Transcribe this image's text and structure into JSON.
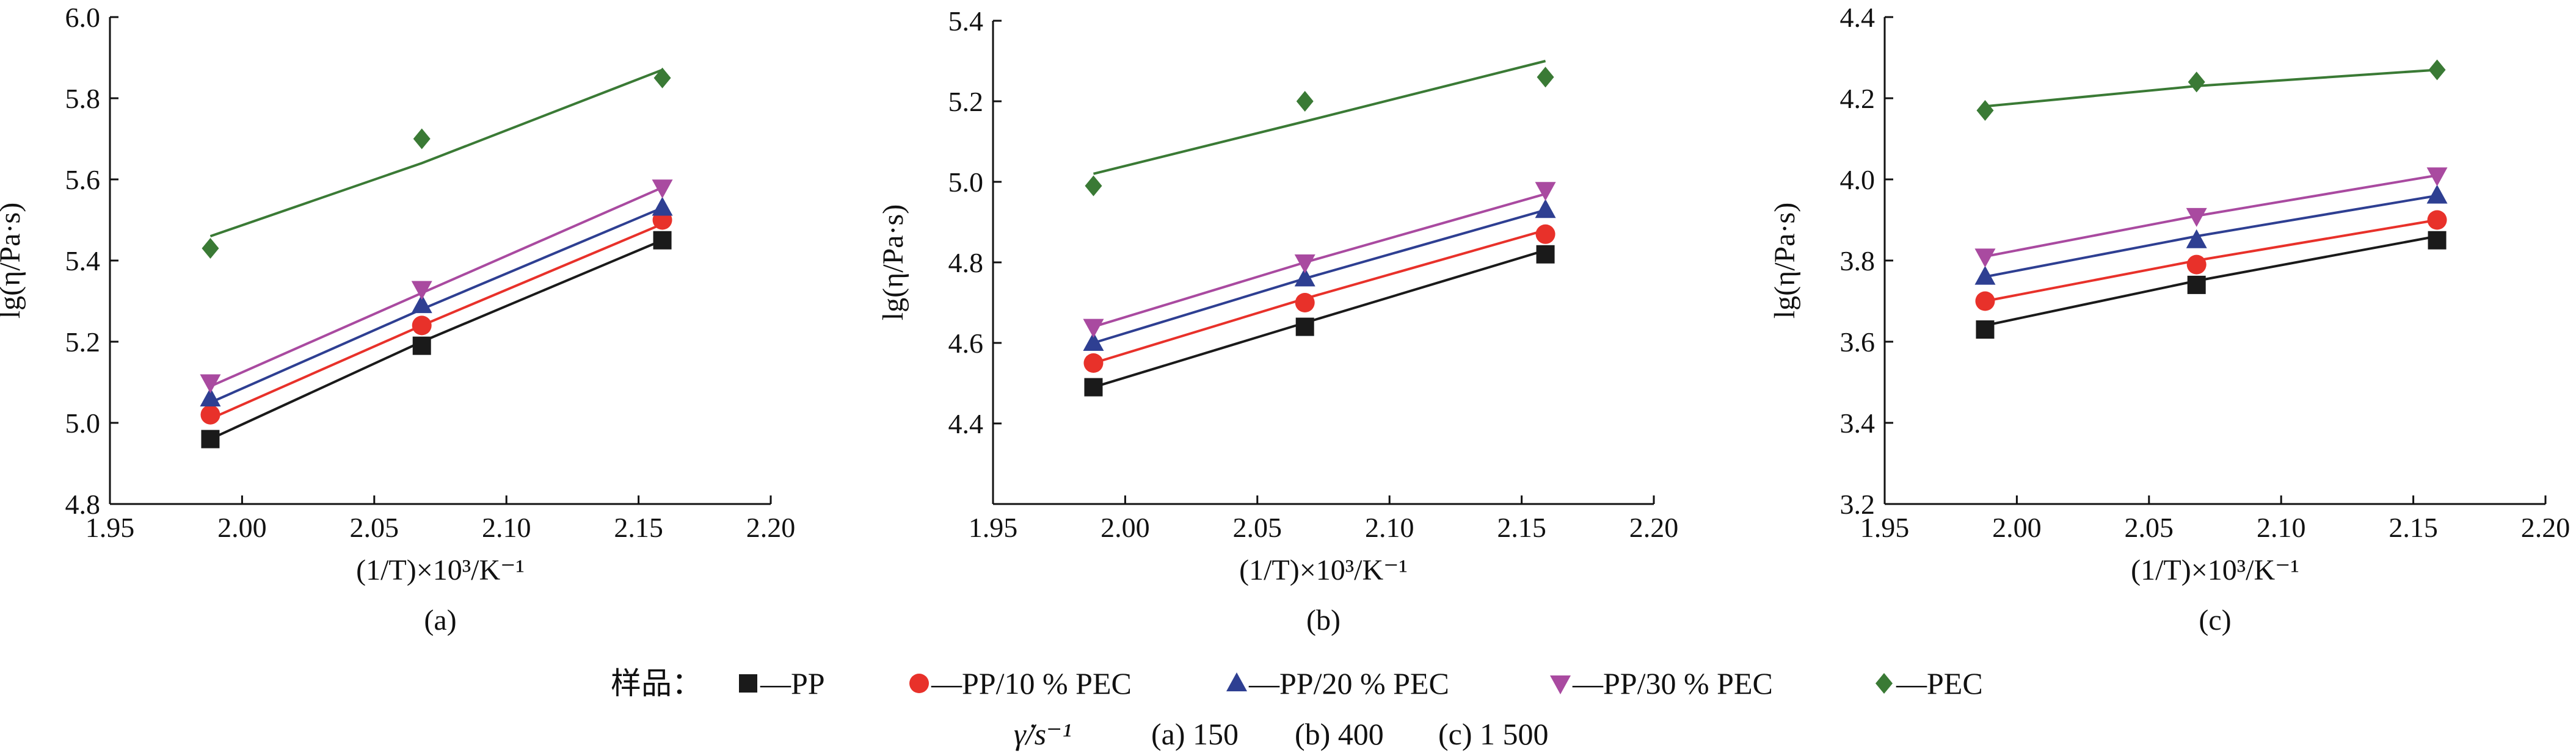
{
  "chart_data": [
    {
      "type": "scatter",
      "panel_label": "(a)",
      "xlabel": "(1/T)×10³/K⁻¹",
      "ylabel": "lg(η/Pa·s)",
      "xlim": [
        1.95,
        2.2
      ],
      "ylim": [
        4.8,
        6.0
      ],
      "xticks": [
        "1.95",
        "2.00",
        "2.05",
        "2.10",
        "2.15",
        "2.20"
      ],
      "yticks": [
        "4.8",
        "5.0",
        "5.2",
        "5.4",
        "5.6",
        "5.8",
        "6.0"
      ],
      "x": [
        1.988,
        2.068,
        2.159
      ],
      "series": [
        {
          "name": "PP",
          "values": [
            4.96,
            5.19,
            5.45
          ],
          "fit": [
            4.96,
            5.2,
            5.45
          ]
        },
        {
          "name": "PP/10 % PEC",
          "values": [
            5.02,
            5.24,
            5.5
          ],
          "fit": [
            5.01,
            5.24,
            5.49
          ]
        },
        {
          "name": "PP/20 % PEC",
          "values": [
            5.06,
            5.29,
            5.53
          ],
          "fit": [
            5.05,
            5.28,
            5.53
          ]
        },
        {
          "name": "PP/30 % PEC",
          "values": [
            5.1,
            5.33,
            5.58
          ],
          "fit": [
            5.09,
            5.32,
            5.58
          ]
        },
        {
          "name": "PEC",
          "values": [
            5.43,
            5.7,
            5.85
          ],
          "fit": [
            5.46,
            5.64,
            5.87
          ]
        }
      ]
    },
    {
      "type": "scatter",
      "panel_label": "(b)",
      "xlabel": "(1/T)×10³/K⁻¹",
      "ylabel": "lg(η/Pa·s)",
      "xlim": [
        1.95,
        2.2
      ],
      "ylim": [
        4.2,
        5.4
      ],
      "xticks": [
        "1.95",
        "2.00",
        "2.05",
        "2.10",
        "2.15",
        "2.20"
      ],
      "yticks": [
        "4.4",
        "4.6",
        "4.8",
        "5.0",
        "5.2",
        "5.4"
      ],
      "x": [
        1.988,
        2.068,
        2.159
      ],
      "series": [
        {
          "name": "PP",
          "values": [
            4.49,
            4.64,
            4.82
          ],
          "fit": [
            4.49,
            4.65,
            4.83
          ]
        },
        {
          "name": "PP/10 % PEC",
          "values": [
            4.55,
            4.7,
            4.87
          ],
          "fit": [
            4.55,
            4.71,
            4.88
          ]
        },
        {
          "name": "PP/20 % PEC",
          "values": [
            4.6,
            4.76,
            4.93
          ],
          "fit": [
            4.6,
            4.76,
            4.93
          ]
        },
        {
          "name": "PP/30 % PEC",
          "values": [
            4.64,
            4.8,
            4.98
          ],
          "fit": [
            4.64,
            4.8,
            4.97
          ]
        },
        {
          "name": "PEC",
          "values": [
            4.99,
            5.2,
            5.26
          ],
          "fit": [
            5.02,
            5.15,
            5.3
          ]
        }
      ]
    },
    {
      "type": "scatter",
      "panel_label": "(c)",
      "xlabel": "(1/T)×10³/K⁻¹",
      "ylabel": "lg(η/Pa·s)",
      "xlim": [
        1.95,
        2.2
      ],
      "ylim": [
        3.2,
        4.4
      ],
      "xticks": [
        "1.95",
        "2.00",
        "2.05",
        "2.10",
        "2.15",
        "2.20"
      ],
      "yticks": [
        "3.2",
        "3.4",
        "3.6",
        "3.8",
        "4.0",
        "4.2",
        "4.4"
      ],
      "x": [
        1.988,
        2.068,
        2.159
      ],
      "series": [
        {
          "name": "PP",
          "values": [
            3.63,
            3.74,
            3.85
          ],
          "fit": [
            3.64,
            3.75,
            3.86
          ]
        },
        {
          "name": "PP/10 % PEC",
          "values": [
            3.7,
            3.79,
            3.9
          ],
          "fit": [
            3.7,
            3.8,
            3.9
          ]
        },
        {
          "name": "PP/20 % PEC",
          "values": [
            3.76,
            3.85,
            3.96
          ],
          "fit": [
            3.76,
            3.86,
            3.96
          ]
        },
        {
          "name": "PP/30 % PEC",
          "values": [
            3.81,
            3.91,
            4.01
          ],
          "fit": [
            3.81,
            3.91,
            4.01
          ]
        },
        {
          "name": "PEC",
          "values": [
            4.17,
            4.24,
            4.27
          ],
          "fit": [
            4.18,
            4.23,
            4.27
          ]
        }
      ]
    }
  ],
  "legend": {
    "prefix": "样品：",
    "items": [
      {
        "name": "PP",
        "text": "—PP",
        "marker": "square",
        "color": "#1a1a1a"
      },
      {
        "name": "PP/10 % PEC",
        "text": "—PP/10 % PEC",
        "marker": "circle",
        "color": "#e8312a"
      },
      {
        "name": "PP/20 % PEC",
        "text": "—PP/20 % PEC",
        "marker": "triangle-up",
        "color": "#2e3f92"
      },
      {
        "name": "PP/30 % PEC",
        "text": "—PP/30 % PEC",
        "marker": "triangle-down",
        "color": "#a94aa0"
      },
      {
        "name": "PEC",
        "text": "—PEC",
        "marker": "diamond",
        "color": "#3a7a35"
      }
    ]
  },
  "note": {
    "symbol": "γ̇/s⁻¹",
    "values": [
      "(a) 150",
      "(b) 400",
      "(c) 1 500"
    ]
  }
}
